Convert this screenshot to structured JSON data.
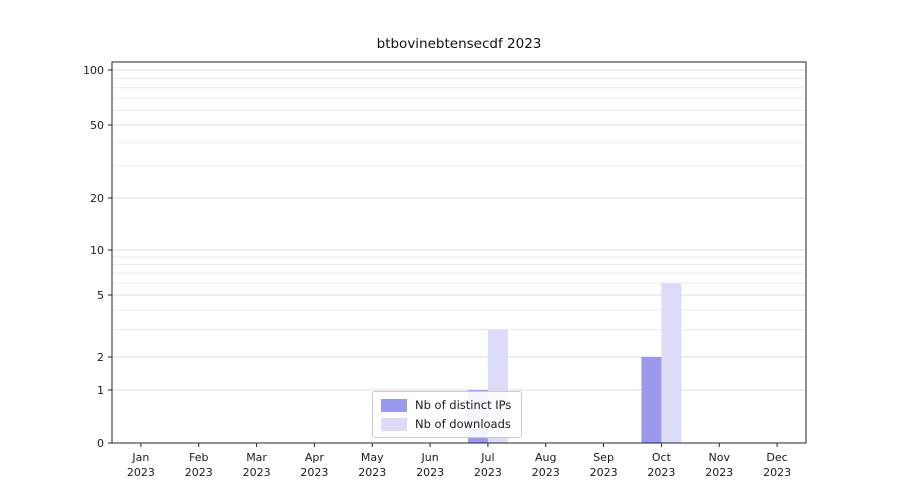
{
  "figure": {
    "title": "btbovinebtensecdf 2023",
    "background": "#ffffff"
  },
  "legend": {
    "items": [
      {
        "label": "Nb of distinct IPs",
        "color": "#9a99ee"
      },
      {
        "label": "Nb of downloads",
        "color": "#dcdcf8"
      }
    ]
  },
  "chart_data": {
    "type": "bar",
    "title": "btbovinebtensecdf 2023",
    "categories": [
      "Jan 2023",
      "Feb 2023",
      "Mar 2023",
      "Apr 2023",
      "May 2023",
      "Jun 2023",
      "Jul 2023",
      "Aug 2023",
      "Sep 2023",
      "Oct 2023",
      "Nov 2023",
      "Dec 2023"
    ],
    "series": [
      {
        "name": "Nb of distinct IPs",
        "color": "#9a99ee",
        "values": [
          0,
          0,
          0,
          0,
          0,
          0,
          1,
          0,
          0,
          2,
          0,
          0
        ]
      },
      {
        "name": "Nb of downloads",
        "color": "#dcdcf8",
        "values": [
          0,
          0,
          0,
          0,
          0,
          0,
          3,
          0,
          0,
          6,
          0,
          0
        ]
      }
    ],
    "yscale": "log-like (linear 0-1, logarithmic above 1)",
    "ylim": [
      0,
      115
    ],
    "y_ticks": [
      0,
      1,
      2,
      5,
      10,
      20,
      50,
      100
    ],
    "y_gridlines": [
      1,
      2,
      3,
      4,
      5,
      6,
      7,
      8,
      9,
      10,
      20,
      30,
      40,
      50,
      60,
      70,
      80,
      90,
      100
    ],
    "xlabel": "",
    "ylabel": "",
    "grid": true,
    "legend_position": "lower center"
  }
}
